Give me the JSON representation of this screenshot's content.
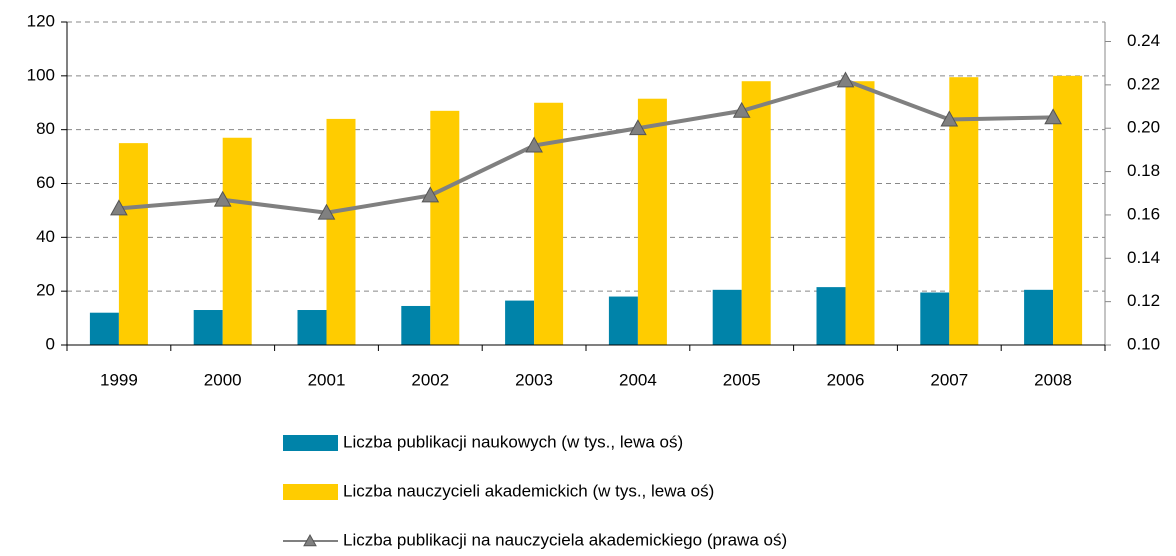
{
  "chart_data": {
    "type": "bar_line",
    "categories": [
      "1999",
      "2000",
      "2001",
      "2002",
      "2003",
      "2004",
      "2005",
      "2006",
      "2007",
      "2008"
    ],
    "series": [
      {
        "name": "Liczba publikacji naukowych (w tys., lewa oś)",
        "color": "#0083a9",
        "type": "bar",
        "values": [
          12,
          13,
          13,
          14.5,
          16.5,
          18,
          20.5,
          21.5,
          19.5,
          20.5
        ]
      },
      {
        "name": "Liczba nauczycieli akademickich (w tys., lewa oś)",
        "color": "#ffcc00",
        "type": "bar",
        "values": [
          75,
          77,
          84,
          87,
          90,
          91.5,
          98,
          98,
          99.5,
          100
        ]
      },
      {
        "name": "Liczba publikacji na nauczyciela akademickiego (prawa oś)",
        "color": "#808080",
        "type": "line",
        "axis": "y2",
        "values": [
          0.163,
          0.167,
          0.161,
          0.169,
          0.192,
          0.2,
          0.208,
          0.222,
          0.204,
          0.205
        ]
      }
    ],
    "ylim": [
      0,
      120
    ],
    "yticks": [
      0,
      20,
      40,
      60,
      80,
      100,
      120
    ],
    "y2lim": [
      0.1,
      0.249
    ],
    "y2ticks": [
      {
        "value": 0.1,
        "label": "0.10"
      },
      {
        "value": 0.12,
        "label": "0.12"
      },
      {
        "value": 0.14,
        "label": "0.14"
      },
      {
        "value": 0.16,
        "label": "0.16"
      },
      {
        "value": 0.18,
        "label": "0.18"
      },
      {
        "value": 0.2,
        "label": "0.20"
      },
      {
        "value": 0.22,
        "label": "0.22"
      },
      {
        "value": 0.24,
        "label": "0.24"
      }
    ],
    "grid": true,
    "legend": "bottom"
  }
}
